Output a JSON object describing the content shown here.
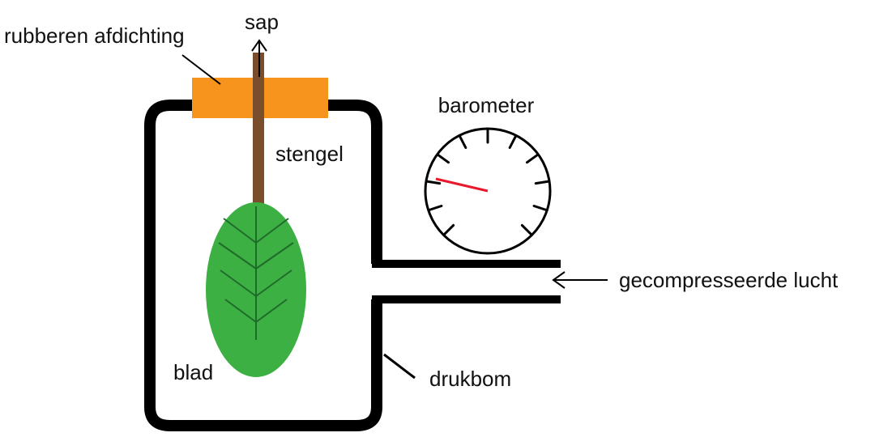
{
  "labels": {
    "seal": "rubberen afdichting",
    "sap": "sap",
    "stem": "stengel",
    "barometer": "barometer",
    "air": "gecompresseerde lucht",
    "leaf": "blad",
    "bomb": "drukbom"
  },
  "colors": {
    "outline": "#000000",
    "seal": "#f7941d",
    "stem": "#7a4e2d",
    "leaf": "#3db043",
    "leaf_veins": "#1f6b2a",
    "needle": "#e8192c"
  },
  "icons": {
    "sap_arrow": "arrow-up-icon",
    "air_arrow": "arrow-left-icon",
    "barometer": "pressure-gauge-icon"
  }
}
